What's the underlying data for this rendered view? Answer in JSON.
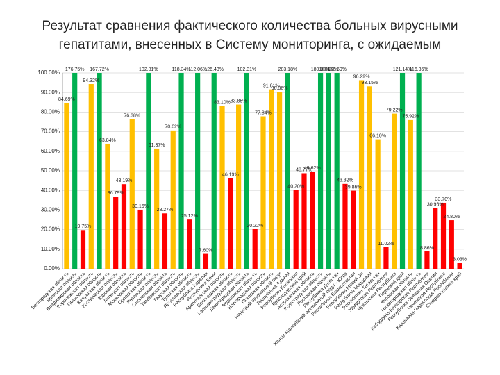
{
  "chart_data": {
    "type": "bar",
    "title": [
      "Результат сравнения фактического количества больных вирусными",
      "гепатитами, внесенных в Систему мониторинга, с ожидаемым"
    ],
    "categories": [
      "Белгородская область",
      "Брянская область",
      "Владимирская область",
      "Воронежская область",
      "Ивановская область",
      "Калужская область",
      "Костромская область",
      "Курская область",
      "Липецкая область",
      "Московская область",
      "Орловская область",
      "Рязанская область",
      "Смоленская область",
      "Тамбовская область",
      "Тверская область",
      "Тульская область",
      "Ярославская область",
      "Республика Карелия",
      "Республика Коми",
      "Архангельская область",
      "Вологодская область",
      "Калининградская область",
      "Ленинградская область",
      "Мурманская область",
      "Новгородская область",
      "Псковская область",
      "Ненецкий автономный округ",
      "Республика Адыгея",
      "Республика Калмыкия",
      "Краснодарский край",
      "Астраханская область",
      "Волгоградская область",
      "Ростовская область",
      "Республика Дагестан",
      "Ханты-Мансийский автономный округ - Югра",
      "Республика Башкортостан",
      "Республика Марий Эл",
      "Республика Мордовия",
      "Республика Татарстан",
      "Удмуртская Республика",
      "Чувашская Республика",
      "Пермский край",
      "Кировская область",
      "Нижегородская область",
      "Кабардино-Балкарская Республика",
      "Республика Северная Осетия",
      "Чеченская Республика",
      "Карачаево-Черкесская Республика",
      "Ставропольский край"
    ],
    "values": [
      84.69,
      176.75,
      19.75,
      94.32,
      167.72,
      63.84,
      36.79,
      43.19,
      76.38,
      30.16,
      102.81,
      61.37,
      28.27,
      70.62,
      118.34,
      25.12,
      112.06,
      7.6,
      126.43,
      83.1,
      46.19,
      83.85,
      102.31,
      20.22,
      77.84,
      91.61,
      90.36,
      283.18,
      40.2,
      48.77,
      49.62,
      180,
      180,
      168.69,
      43.32,
      39.86,
      96.29,
      93.15,
      66.1,
      11.02,
      79.22,
      121.14,
      75.92,
      116.36,
      8.86,
      30.96,
      33.7,
      24.8,
      3.03
    ],
    "value_labels": [
      "84.69%",
      "176.75%",
      "19.75%",
      "94.32%",
      "167.72%",
      "63.84%",
      "36.79%",
      "43.19%",
      "76.38%",
      "30.16%",
      "102.81%",
      "61.37%",
      "28.27%",
      "70.62%",
      "118.34%",
      "25.12%",
      "112.06%",
      "7.60%",
      "126.43%",
      "83.10%",
      "46.19%",
      "83.85%",
      "102.31%",
      "20.22%",
      "77.84%",
      "91.61%",
      "90.36%",
      "283.18%",
      "40.20%",
      "48.77%",
      "49.62%",
      "180.00%",
      "180.00%",
      "168.69%",
      "43.32%",
      "39.86%",
      "96.29%",
      "93.15%",
      "66.10%",
      "11.02%",
      "79.22%",
      "121.14%",
      "75.92%",
      "116.36%",
      "8.86%",
      "30.96%",
      "33.70%",
      "24.80%",
      "3.03%"
    ],
    "colors": [
      "#ffc000",
      "#00b050",
      "#ff0000",
      "#ffc000",
      "#00b050",
      "#ffc000",
      "#ff0000",
      "#ff0000",
      "#ffc000",
      "#ff0000",
      "#00b050",
      "#ffc000",
      "#ff0000",
      "#ffc000",
      "#00b050",
      "#ff0000",
      "#00b050",
      "#ff0000",
      "#00b050",
      "#ffc000",
      "#ff0000",
      "#ffc000",
      "#00b050",
      "#ff0000",
      "#ffc000",
      "#ffc000",
      "#ffc000",
      "#00b050",
      "#ff0000",
      "#ff0000",
      "#ff0000",
      "#00b050",
      "#00b050",
      "#00b050",
      "#ff0000",
      "#ff0000",
      "#ffc000",
      "#ffc000",
      "#ffc000",
      "#ff0000",
      "#ffc000",
      "#00b050",
      "#ffc000",
      "#00b050",
      "#ff0000",
      "#ff0000",
      "#ff0000",
      "#ff0000",
      "#ff0000"
    ],
    "ylim": [
      0,
      100
    ],
    "yticks": [
      {
        "value": 0,
        "label": "0.00%"
      },
      {
        "value": 10,
        "label": "10.00%"
      },
      {
        "value": 20,
        "label": "20.00%"
      },
      {
        "value": 30,
        "label": "30.00%"
      },
      {
        "value": 40,
        "label": "40.00%"
      },
      {
        "value": 50,
        "label": "50.00%"
      },
      {
        "value": 60,
        "label": "60.00%"
      },
      {
        "value": 70,
        "label": "70.00%"
      },
      {
        "value": 80,
        "label": "80.00%"
      },
      {
        "value": 90,
        "label": "90.00%"
      },
      {
        "value": 100,
        "label": "100.00%"
      }
    ],
    "grid": true
  }
}
